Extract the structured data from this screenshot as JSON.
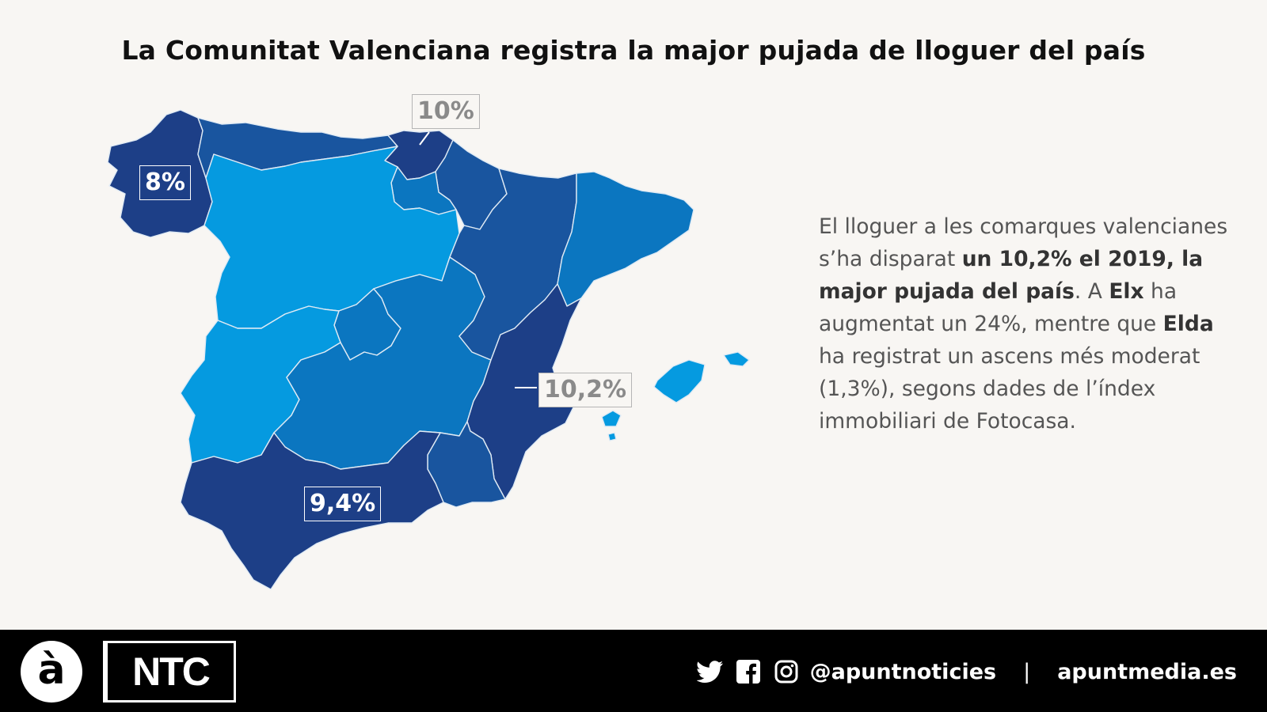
{
  "title": "La Comunitat Valenciana registra la major pujada de lloguer del país",
  "colors": {
    "background": "#f8f6f3",
    "level_darkest": "#1d3f87",
    "level_dark": "#19559f",
    "level_medium": "#0b76c0",
    "level_light": "#059ae0",
    "footer": "#000000"
  },
  "map": {
    "labels": {
      "galicia": "8%",
      "pais_basc": "10%",
      "valencia": "10,2%",
      "andalusia": "9,4%"
    }
  },
  "description": {
    "line1_a": "El lloguer a les comarques valencianes s’ha disparat ",
    "line1_b": "un 10,2% el 2019, la major pujada del país",
    "line2_a": ". A ",
    "line2_b": "Elx",
    "line3_a": " ha augmentat un 24%, mentre que ",
    "line3_b": "Elda",
    "line4": " ha registrat un ascens més moderat (1,3%), segons dades de l’índex immobiliari de Fotocasa."
  },
  "footer": {
    "logo_a": "à",
    "logo_ntc": "NTC",
    "handle": "@apuntnoticies",
    "separator": "|",
    "website": "apuntmedia.es",
    "icons": [
      "twitter-icon",
      "facebook-icon",
      "instagram-icon"
    ]
  }
}
